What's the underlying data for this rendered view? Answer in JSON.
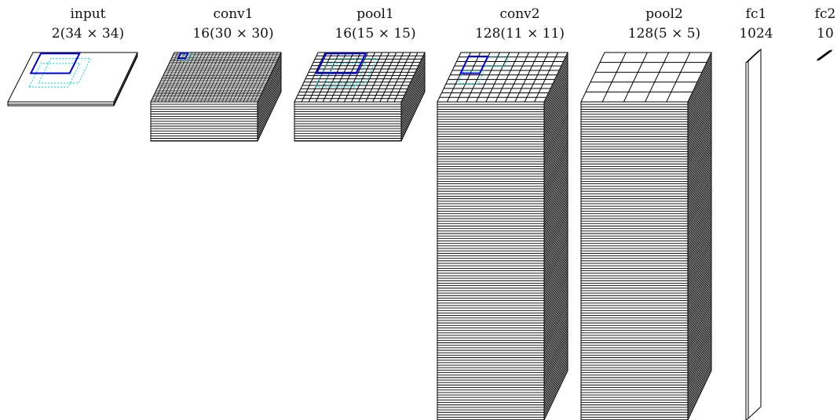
{
  "colors": {
    "stroke": "#000000",
    "face": "#ffffff",
    "kernel": "#0000dd",
    "kernel_out": "#00dddd"
  },
  "layers": [
    {
      "id": "input",
      "name": "input",
      "shape": "2(34 × 34)",
      "depth": 2,
      "grid": 0,
      "kernel": "big"
    },
    {
      "id": "conv1",
      "name": "conv1",
      "shape": "16(30 × 30)",
      "depth": 16,
      "grid": 30,
      "kernel": "tiny"
    },
    {
      "id": "pool1",
      "name": "pool1",
      "shape": "16(15 × 15)",
      "depth": 16,
      "grid": 15,
      "kernel": "big"
    },
    {
      "id": "conv2",
      "name": "conv2",
      "shape": "128(11 × 11)",
      "depth": 128,
      "grid": 11,
      "kernel": "small"
    },
    {
      "id": "pool2",
      "name": "pool2",
      "shape": "128(5 × 5)",
      "depth": 128,
      "grid": 5,
      "kernel": "none"
    },
    {
      "id": "fc1",
      "name": "fc1",
      "shape": "1024",
      "depth": 1024,
      "grid": 0,
      "kernel": "none"
    },
    {
      "id": "fc2",
      "name": "fc2",
      "shape": "10",
      "depth": 10,
      "grid": 0,
      "kernel": "none"
    }
  ]
}
